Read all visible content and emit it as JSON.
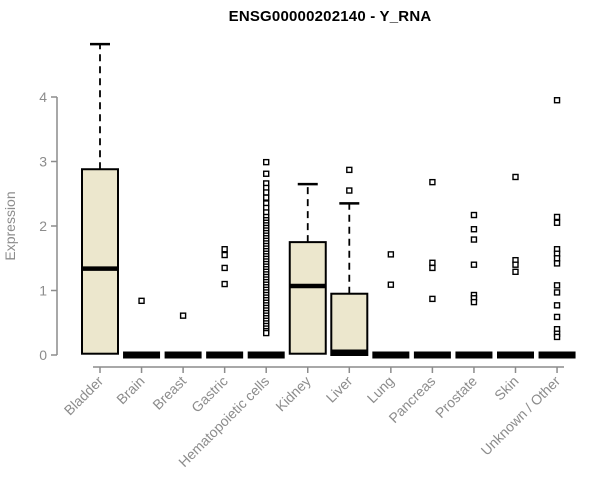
{
  "colors": {
    "box_fill": "#ECE7CD",
    "box_border": "#000000",
    "median": "#000000",
    "whisker": "#000000",
    "outlier_fill": "#FFFFFF",
    "outlier_border": "#000000",
    "axis": "#8C8C8C",
    "tick_text": "#8C8C8C",
    "title_text": "#000000"
  },
  "chart_data": {
    "type": "boxplot",
    "title": "ENSG00000202140 - Y_RNA",
    "xlabel": "",
    "ylabel": "Expression",
    "ylim": [
      0,
      4.9
    ],
    "yticks": [
      0,
      1,
      2,
      3,
      4
    ],
    "grid": false,
    "legend": false,
    "categories": [
      "Bladder",
      "Brain",
      "Breast",
      "Gastric",
      "Hematopoietic cells",
      "Kidney",
      "Liver",
      "Lung",
      "Pancreas",
      "Prostate",
      "Skin",
      "Unknown / Other"
    ],
    "series": [
      {
        "name": "Bladder",
        "q1": 0.02,
        "median": 1.34,
        "q3": 2.88,
        "whisker_low": 0.02,
        "whisker_high": 4.82,
        "outliers": []
      },
      {
        "name": "Brain",
        "q1": 0,
        "median": 0,
        "q3": 0,
        "whisker_low": 0,
        "whisker_high": 0,
        "outliers": [
          0.84
        ]
      },
      {
        "name": "Breast",
        "q1": 0,
        "median": 0,
        "q3": 0,
        "whisker_low": 0,
        "whisker_high": 0,
        "outliers": [
          0.61
        ]
      },
      {
        "name": "Gastric",
        "q1": 0,
        "median": 0,
        "q3": 0,
        "whisker_low": 0,
        "whisker_high": 0,
        "outliers": [
          1.64,
          1.55,
          1.35,
          1.1
        ]
      },
      {
        "name": "Hematopoietic cells",
        "q1": 0,
        "median": 0,
        "q3": 0,
        "whisker_low": 0,
        "whisker_high": 0,
        "outliers": [
          2.99,
          2.81,
          2.66,
          2.59,
          2.52,
          2.44,
          2.35,
          2.28,
          2.21,
          2.14,
          2.09,
          2.05,
          2.01,
          1.97,
          1.93,
          1.89,
          1.85,
          1.81,
          1.77,
          1.73,
          1.69,
          1.65,
          1.61,
          1.57,
          1.53,
          1.49,
          1.45,
          1.41,
          1.37,
          1.33,
          1.29,
          1.25,
          1.21,
          1.17,
          1.13,
          1.09,
          1.05,
          1.01,
          0.97,
          0.93,
          0.89,
          0.85,
          0.81,
          0.77,
          0.73,
          0.69,
          0.65,
          0.61,
          0.57,
          0.53,
          0.49,
          0.45,
          0.41,
          0.37,
          0.34
        ]
      },
      {
        "name": "Kidney",
        "q1": 0.02,
        "median": 1.07,
        "q3": 1.75,
        "whisker_low": 0.02,
        "whisker_high": 2.65,
        "outliers": []
      },
      {
        "name": "Liver",
        "q1": 0,
        "median": 0.05,
        "q3": 0.95,
        "whisker_low": 0,
        "whisker_high": 2.35,
        "outliers": [
          2.87,
          2.55
        ]
      },
      {
        "name": "Lung",
        "q1": 0,
        "median": 0,
        "q3": 0,
        "whisker_low": 0,
        "whisker_high": 0,
        "outliers": [
          1.56,
          1.09
        ]
      },
      {
        "name": "Pancreas",
        "q1": 0,
        "median": 0,
        "q3": 0,
        "whisker_low": 0,
        "whisker_high": 0,
        "outliers": [
          2.68,
          1.43,
          1.35,
          0.87
        ]
      },
      {
        "name": "Prostate",
        "q1": 0,
        "median": 0,
        "q3": 0,
        "whisker_low": 0,
        "whisker_high": 0,
        "outliers": [
          2.17,
          1.95,
          1.79,
          1.4,
          0.93,
          0.88,
          0.82
        ]
      },
      {
        "name": "Skin",
        "q1": 0,
        "median": 0,
        "q3": 0,
        "whisker_low": 0,
        "whisker_high": 0,
        "outliers": [
          2.76,
          1.47,
          1.4,
          1.29
        ]
      },
      {
        "name": "Unknown / Other",
        "q1": 0,
        "median": 0,
        "q3": 0,
        "whisker_low": 0,
        "whisker_high": 0,
        "outliers": [
          3.95,
          2.14,
          2.05,
          1.64,
          1.57,
          1.5,
          1.42,
          1.08,
          0.97,
          0.77,
          0.59,
          0.4,
          0.33,
          0.28
        ]
      }
    ]
  }
}
